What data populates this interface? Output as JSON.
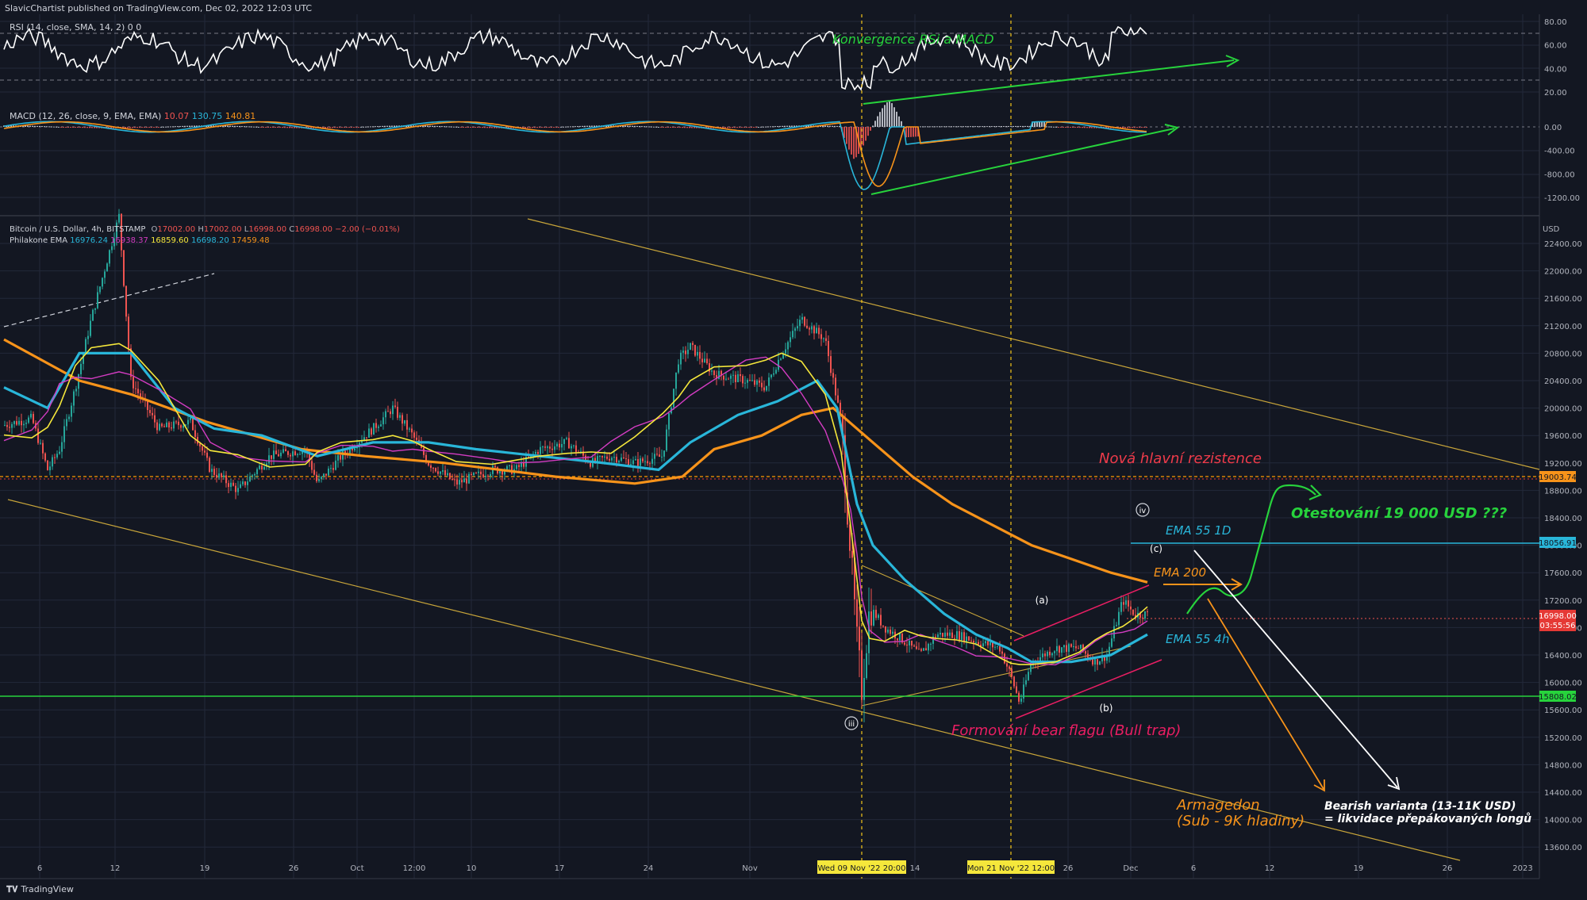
{
  "header": {
    "publisher": "SlavicChartist published on TradingView.com, Dec 02, 2022 12:03 UTC",
    "brand": "TradingView",
    "currency": "USD"
  },
  "colors": {
    "bg": "#131722",
    "grid": "#23283a",
    "text": "#b2b5be",
    "up": "#26a69a",
    "down": "#ef5350",
    "ema_yellow": "#f5e73b",
    "ema_pink": "#d33cc2",
    "ema_cyan": "#29b6d9",
    "ema_orange": "#f7931a",
    "green": "#27d33c",
    "pink": "#e91e63",
    "white": "#ffffff",
    "trend": "#c8a53a"
  },
  "rsi": {
    "label": "RSI (14, close, SMA, 14, 2) 0 0",
    "ticks": [
      "80.00",
      "60.00",
      "40.00",
      "20.00"
    ],
    "annotation": "Konvergence RSi a MACD"
  },
  "macd": {
    "label": "MACD (12, 26, close, 9, EMA, EMA)",
    "v1": "10.07",
    "v2": "130.75",
    "v3": "140.81",
    "ticks": [
      "0.00",
      "-400.00",
      "-800.00",
      "-1200.00"
    ]
  },
  "price": {
    "symbol": "Bitcoin / U.S. Dollar, 4h, BITSTAMP",
    "ohlc": {
      "o": "17002.00",
      "h": "17002.00",
      "l": "16998.00",
      "c": "16998.00",
      "chg": "−2.00 (−0.01%)"
    },
    "ema_label": "Philakone EMA",
    "ema_values": [
      "16976.24",
      "16938.37",
      "16859.60",
      "16698.20",
      "17459.48"
    ],
    "ticks": [
      "22400.00",
      "22000.00",
      "21600.00",
      "21200.00",
      "20800.00",
      "20400.00",
      "20000.00",
      "19600.00",
      "19200.00",
      "18800.00",
      "18400.00",
      "18000.00",
      "17600.00",
      "17200.00",
      "16800.00",
      "16400.00",
      "16000.00",
      "15600.00",
      "15200.00",
      "14800.00",
      "14400.00",
      "14000.00",
      "13600.00"
    ],
    "badges": {
      "resistance": "19003.74",
      "ema55_1d": "18056.91",
      "last": "16998.00",
      "countdown": "03:55:56",
      "support": "15808.02"
    }
  },
  "x_axis": {
    "labels": [
      "6",
      "12",
      "19",
      "26",
      "Oct",
      "12:00",
      "10",
      "17",
      "24",
      "Nov",
      "14",
      "26",
      "Dec",
      "6",
      "12",
      "19",
      "26",
      "2023"
    ],
    "marker1": "Wed 09 Nov '22   20:00",
    "marker2": "Mon 21 Nov '22   12:00"
  },
  "annotations": {
    "resistance": "Nová hlavní rezistence",
    "retest": "Otestování 19 000 USD ???",
    "ema55_1d": "EMA 55 1D",
    "ema200": "EMA 200",
    "ema55_4h": "EMA 55 4h",
    "bear_flag": "Formování bear flagu (Bull trap)",
    "armageddon_1": "Armagedon",
    "armageddon_2": "(Sub - 9K hladiny)",
    "bearish_1": "Bearish varianta (13-11K USD)",
    "bearish_2": "= likvidace přepákovaných longů",
    "wave_iv": "iv",
    "wave_iii": "iii",
    "wave_a": "(a)",
    "wave_b": "(b)",
    "wave_c": "(c)"
  },
  "chart_data": {
    "type": "line",
    "title": "Bitcoin / U.S. Dollar, 4h, BITSTAMP",
    "ylabel": "USD",
    "ylim": [
      13400,
      22800
    ],
    "x": [
      "6",
      "12",
      "19",
      "26",
      "Oct",
      "12:00",
      "10",
      "17",
      "24",
      "Nov",
      "Wed 09 Nov '22 20:00",
      "14",
      "Mon 21 Nov '22 12:00",
      "26",
      "Dec"
    ],
    "series": [
      {
        "name": "Bitcoin / U.S. Dollar",
        "values": [
          19800,
          21000,
          19000,
          19200,
          19300,
          19600,
          19200,
          19300,
          19300,
          20600,
          15800,
          16500,
          15900,
          16300,
          16998
        ]
      },
      {
        "name": "EMA 200",
        "values": [
          21200,
          20500,
          19800,
          19700,
          19600,
          19500,
          19500,
          19400,
          19400,
          19800,
          19300,
          18400,
          17900,
          17700,
          17459.48
        ]
      },
      {
        "name": "EMA 55 4h",
        "values": [
          20200,
          19900,
          19500,
          19300,
          19300,
          19400,
          19200,
          19200,
          19300,
          20400,
          18000,
          16800,
          16700,
          16600,
          16698.2
        ]
      }
    ],
    "levels": {
      "resistance": 19003.74,
      "ema55_1d": 18056.91,
      "support": 15808.02,
      "last": 16998.0
    },
    "rsi_ylim": [
      10,
      85
    ],
    "macd_ylim": [
      -1400,
      200
    ]
  }
}
